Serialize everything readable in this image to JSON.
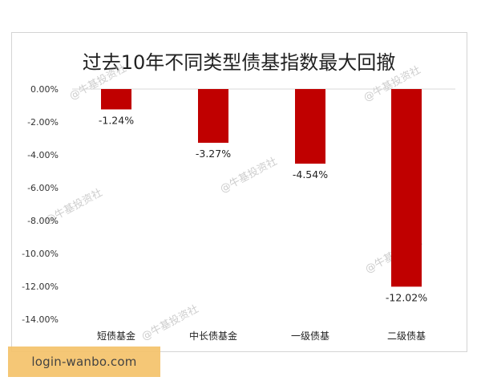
{
  "chart_data": {
    "type": "bar",
    "title": "过去10年不同类型债基指数最大回撤",
    "categories": [
      "短债基金",
      "中长债基金",
      "一级债基",
      "二级债基"
    ],
    "values": [
      -1.24,
      -3.27,
      -4.54,
      -12.02
    ],
    "value_labels": [
      "-1.24%",
      "-3.27%",
      "-4.54%",
      "-12.02%"
    ],
    "ylim": [
      -14,
      0
    ],
    "y_ticks": [
      0,
      -2,
      -4,
      -6,
      -8,
      -10,
      -12,
      -14
    ],
    "y_tick_labels": [
      "0.00%",
      "-2.00%",
      "-4.00%",
      "-6.00%",
      "-8.00%",
      "-10.00%",
      "-12.00%",
      "-14.00%"
    ],
    "xlabel": "",
    "ylabel": "",
    "grid": false,
    "bar_color": "#c00000",
    "watermark_text": "@牛基投资社"
  },
  "footer": {
    "site_label": "login-wanbo.com"
  }
}
